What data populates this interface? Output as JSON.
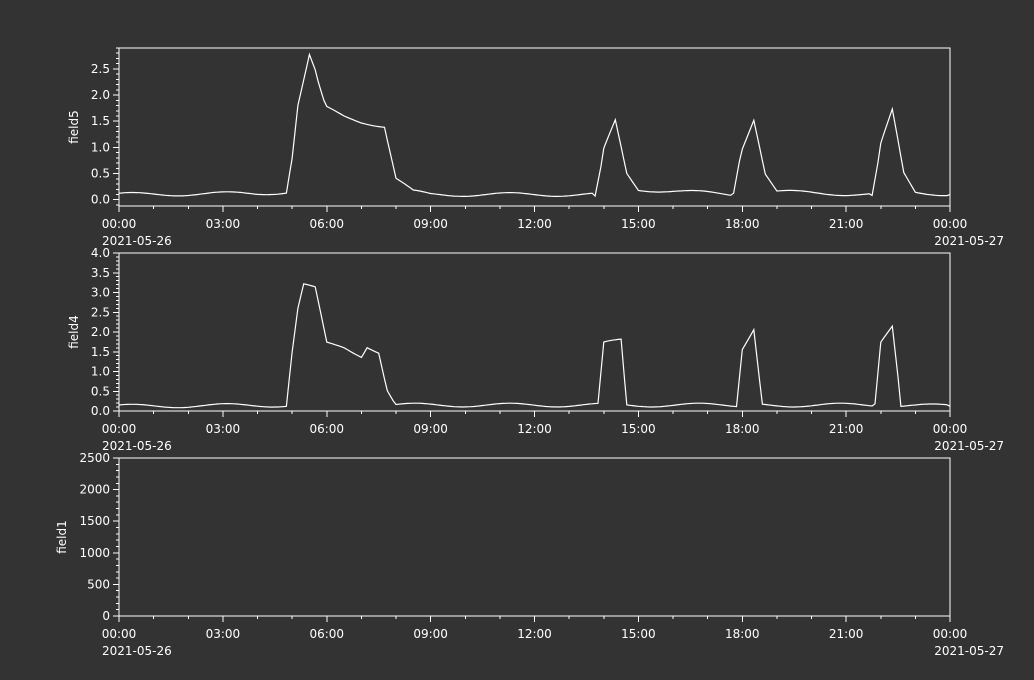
{
  "theme": {
    "background": "#333333",
    "foreground": "#ffffff"
  },
  "chart_data": [
    {
      "type": "line",
      "ylabel": "field5",
      "ylim": [
        -0.12,
        2.9
      ],
      "yticks": [
        0.0,
        0.5,
        1.0,
        1.5,
        2.0,
        2.5
      ],
      "ytick_labels": [
        "0.0",
        "0.5",
        "1.0",
        "1.5",
        "2.0",
        "2.5"
      ],
      "xlim": [
        "2021-05-26 00:00",
        "2021-05-27 00:00"
      ],
      "xtick_labels": [
        "00:00",
        "03:00",
        "06:00",
        "09:00",
        "12:00",
        "15:00",
        "18:00",
        "21:00",
        "00:00"
      ],
      "x_date_labels": [
        "2021-05-26",
        "2021-05-27"
      ],
      "grid": false,
      "series": [
        {
          "x": [
            "2021-05-26 00:00",
            "2021-05-26 04:00",
            "2021-05-26 04:50",
            "2021-05-26 05:00",
            "2021-05-26 05:10",
            "2021-05-26 05:30",
            "2021-05-26 05:45",
            "2021-05-26 06:00",
            "2021-05-26 06:30",
            "2021-05-26 07:00",
            "2021-05-26 07:20",
            "2021-05-26 07:40",
            "2021-05-26 08:00",
            "2021-05-26 08:30",
            "2021-05-26 09:00",
            "2021-05-26 13:45",
            "2021-05-26 14:00",
            "2021-05-26 14:20",
            "2021-05-26 14:40",
            "2021-05-26 15:00",
            "2021-05-26 17:45",
            "2021-05-26 18:00",
            "2021-05-26 18:20",
            "2021-05-26 18:40",
            "2021-05-26 19:00",
            "2021-05-26 21:45",
            "2021-05-26 22:00",
            "2021-05-26 22:20",
            "2021-05-26 22:40",
            "2021-05-26 23:00",
            "2021-05-27 00:00"
          ],
          "values": [
            0.1,
            0.12,
            0.15,
            0.8,
            1.8,
            2.75,
            2.3,
            1.75,
            1.6,
            1.5,
            1.45,
            1.4,
            0.4,
            0.15,
            0.1,
            0.1,
            0.95,
            1.5,
            0.5,
            0.2,
            0.1,
            1.0,
            1.55,
            0.5,
            0.15,
            0.1,
            1.05,
            1.7,
            0.5,
            0.15,
            0.1
          ]
        }
      ]
    },
    {
      "type": "line",
      "ylabel": "field4",
      "ylim": [
        0,
        4.0
      ],
      "yticks": [
        0.0,
        0.5,
        1.0,
        1.5,
        2.0,
        2.5,
        3.0,
        3.5,
        4.0
      ],
      "ytick_labels": [
        "0.0",
        "0.5",
        "1.0",
        "1.5",
        "2.0",
        "2.5",
        "3.0",
        "3.5",
        "4.0"
      ],
      "xlim": [
        "2021-05-26 00:00",
        "2021-05-27 00:00"
      ],
      "xtick_labels": [
        "00:00",
        "03:00",
        "06:00",
        "09:00",
        "12:00",
        "15:00",
        "18:00",
        "21:00",
        "00:00"
      ],
      "x_date_labels": [
        "2021-05-26",
        "2021-05-27"
      ],
      "grid": false,
      "series": [
        {
          "x": [
            "2021-05-26 00:00",
            "2021-05-26 04:50",
            "2021-05-26 05:00",
            "2021-05-26 05:10",
            "2021-05-26 05:20",
            "2021-05-26 05:40",
            "2021-05-26 06:00",
            "2021-05-26 06:30",
            "2021-05-26 07:00",
            "2021-05-26 07:10",
            "2021-05-26 07:30",
            "2021-05-26 07:45",
            "2021-05-26 08:00",
            "2021-05-26 13:50",
            "2021-05-26 14:00",
            "2021-05-26 14:30",
            "2021-05-26 14:40",
            "2021-05-26 17:50",
            "2021-05-26 18:00",
            "2021-05-26 18:20",
            "2021-05-26 18:35",
            "2021-05-26 21:50",
            "2021-05-26 22:00",
            "2021-05-26 22:20",
            "2021-05-26 22:35",
            "2021-05-27 00:00"
          ],
          "values": [
            0.12,
            0.15,
            1.5,
            2.6,
            3.2,
            3.1,
            1.7,
            1.6,
            1.4,
            1.65,
            1.5,
            0.5,
            0.15,
            0.15,
            1.7,
            1.8,
            0.15,
            0.15,
            1.6,
            2.1,
            0.15,
            0.15,
            1.7,
            2.1,
            0.15,
            0.12
          ]
        }
      ]
    },
    {
      "type": "line",
      "ylabel": "field1",
      "ylim": [
        0,
        2500
      ],
      "yticks": [
        0,
        500,
        1000,
        1500,
        2000,
        2500
      ],
      "ytick_labels": [
        "0",
        "500",
        "1000",
        "1500",
        "2000",
        "2500"
      ],
      "xlim": [
        "2021-05-26 00:00",
        "2021-05-27 00:00"
      ],
      "xtick_labels": [
        "00:00",
        "03:00",
        "06:00",
        "09:00",
        "12:00",
        "15:00",
        "18:00",
        "21:00",
        "00:00"
      ],
      "x_date_labels": [
        "2021-05-26",
        "2021-05-27"
      ],
      "grid": false,
      "series": []
    }
  ]
}
